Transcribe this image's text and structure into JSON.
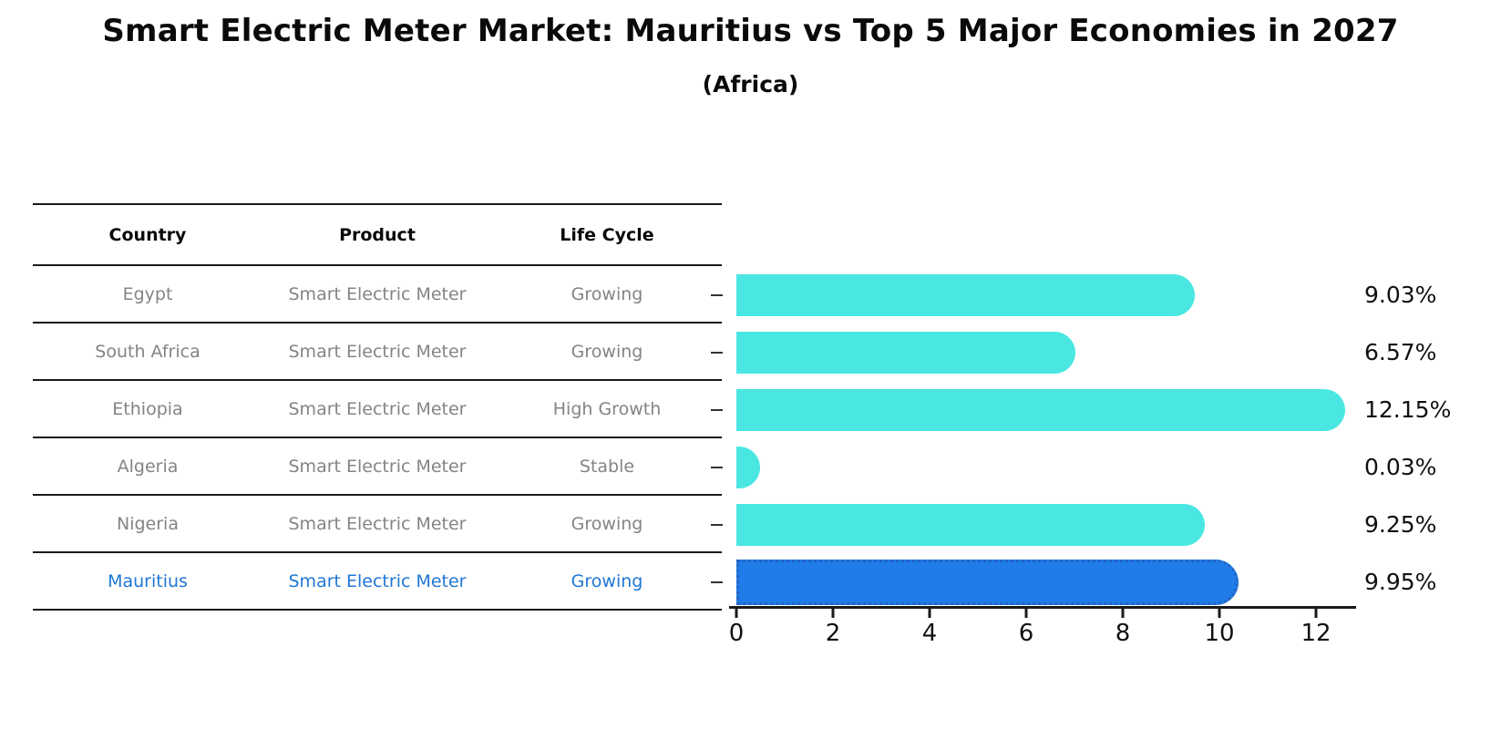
{
  "title": "Smart Electric Meter Market: Mauritius vs Top 5 Major Economies in 2027",
  "subtitle": "(Africa)",
  "table": {
    "headers": [
      "Country",
      "Product",
      "Life Cycle"
    ],
    "rows": [
      {
        "country": "Egypt",
        "product": "Smart Electric Meter",
        "life_cycle": "Growing",
        "highlight": false
      },
      {
        "country": "South Africa",
        "product": "Smart Electric Meter",
        "life_cycle": "Growing",
        "highlight": false
      },
      {
        "country": "Ethiopia",
        "product": "Smart Electric Meter",
        "life_cycle": "High Growth",
        "highlight": false
      },
      {
        "country": "Algeria",
        "product": "Smart Electric Meter",
        "life_cycle": "Stable",
        "highlight": false
      },
      {
        "country": "Nigeria",
        "product": "Smart Electric Meter",
        "life_cycle": "Growing",
        "highlight": false
      },
      {
        "country": "Mauritius",
        "product": "Smart Electric Meter",
        "life_cycle": "Growing",
        "highlight": true
      }
    ]
  },
  "chart_data": {
    "type": "bar",
    "orientation": "horizontal",
    "title": "Smart Electric Meter Market: Mauritius vs Top 5 Major Economies in 2027 (Africa)",
    "categories": [
      "Egypt",
      "South Africa",
      "Ethiopia",
      "Algeria",
      "Nigeria",
      "Mauritius"
    ],
    "values": [
      9.03,
      6.57,
      12.15,
      0.03,
      9.25,
      9.95
    ],
    "value_labels": [
      "9.03%",
      "6.57%",
      "12.15%",
      "0.03%",
      "9.25%",
      "9.95%"
    ],
    "highlight_category": "Mauritius",
    "xlabel": "",
    "ylabel": "",
    "xlim": [
      0,
      12.8
    ],
    "x_ticks": [
      0,
      2,
      4,
      6,
      8,
      10,
      12
    ],
    "grid": false,
    "legend": "none"
  },
  "colors": {
    "bar_default": "#4ae7e2",
    "bar_highlight_fill": "#1f7ce8",
    "bar_highlight_border": "#2464c4",
    "highlight_text": "#1f77d4",
    "table_text": "#848484",
    "header_text": "#0a0a0a",
    "axis": "#1a1a1a",
    "background": "#ffffff"
  }
}
